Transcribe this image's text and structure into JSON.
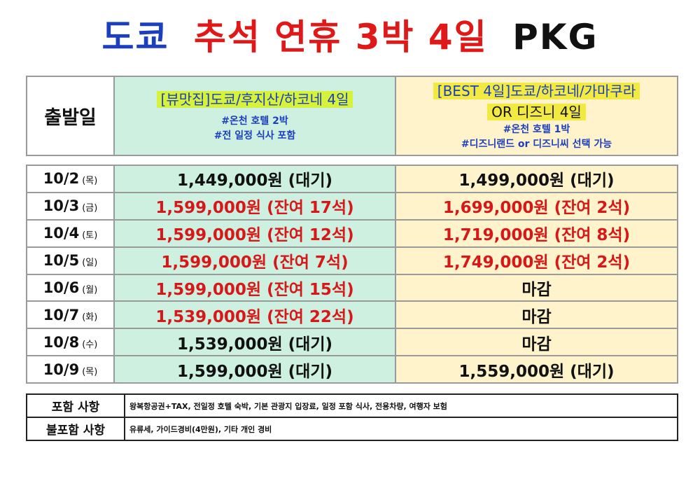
{
  "title": {
    "part1": "도쿄",
    "part2": "추석 연휴 3박 4일",
    "part3": "PKG",
    "colors": {
      "part1": "#1b3fbf",
      "part2": "#e01818",
      "part3": "#111111"
    }
  },
  "header": {
    "departure_label": "출발일",
    "package_a": {
      "name": "[뷰맛집]도쿄/후지산/하코네 4일",
      "notes": [
        "#온천 호텔 2박",
        "#전 일정 식사 포함"
      ]
    },
    "package_b": {
      "name_line1": "[BEST 4일]도쿄/하코네/가마쿠라",
      "name_line2": "OR 디즈니  4일",
      "notes": [
        "#온천 호텔 1박",
        "#디즈니랜드 or 디즈니씨 선택 가능"
      ]
    }
  },
  "rows": [
    {
      "date": "10/2",
      "day": "(목)",
      "price_a": "1,449,000원 (대기)",
      "price_b": "1,499,000원 (대기)",
      "status_a": "black",
      "status_b": "black"
    },
    {
      "date": "10/3",
      "day": "(금)",
      "price_a": "1,599,000원 (잔여 17석)",
      "price_b": "1,699,000원 (잔여 2석)",
      "status_a": "red",
      "status_b": "red"
    },
    {
      "date": "10/4",
      "day": "(토)",
      "price_a": "1,599,000원 (잔여 12석)",
      "price_b": "1,719,000원 (잔여 8석)",
      "status_a": "red",
      "status_b": "red"
    },
    {
      "date": "10/5",
      "day": "(일)",
      "price_a": "1,599,000원 (잔여 7석)",
      "price_b": "1,749,000원 (잔여 2석)",
      "status_a": "red",
      "status_b": "red"
    },
    {
      "date": "10/6",
      "day": "(월)",
      "price_a": "1,599,000원 (잔여 15석)",
      "price_b": "마감",
      "status_a": "red",
      "status_b": "black"
    },
    {
      "date": "10/7",
      "day": "(화)",
      "price_a": "1,539,000원 (잔여 22석)",
      "price_b": "마감",
      "status_a": "red",
      "status_b": "black"
    },
    {
      "date": "10/8",
      "day": "(수)",
      "price_a": "1,539,000원 (대기)",
      "price_b": "마감",
      "status_a": "black",
      "status_b": "black"
    },
    {
      "date": "10/9",
      "day": "(목)",
      "price_a": "1,599,000원 (대기)",
      "price_b": "1,559,000원 (대기)",
      "status_a": "black",
      "status_b": "black"
    }
  ],
  "info": {
    "included_label": "포함 사항",
    "included_text": "왕복항공권+TAX, 전일정 호텔 숙박, 기본 관광지 입장료, 일정 포함 식사, 전용차량, 여행자 보험",
    "excluded_label": "불포함 사항",
    "excluded_text": "유류세, 가이드경비(4만원), 기타 개인 경비"
  },
  "colors": {
    "green_column": "#cdf0e1",
    "yellow_column": "#fff3cb",
    "available_red": "#d81818",
    "note_blue": "#1b3fbf"
  }
}
